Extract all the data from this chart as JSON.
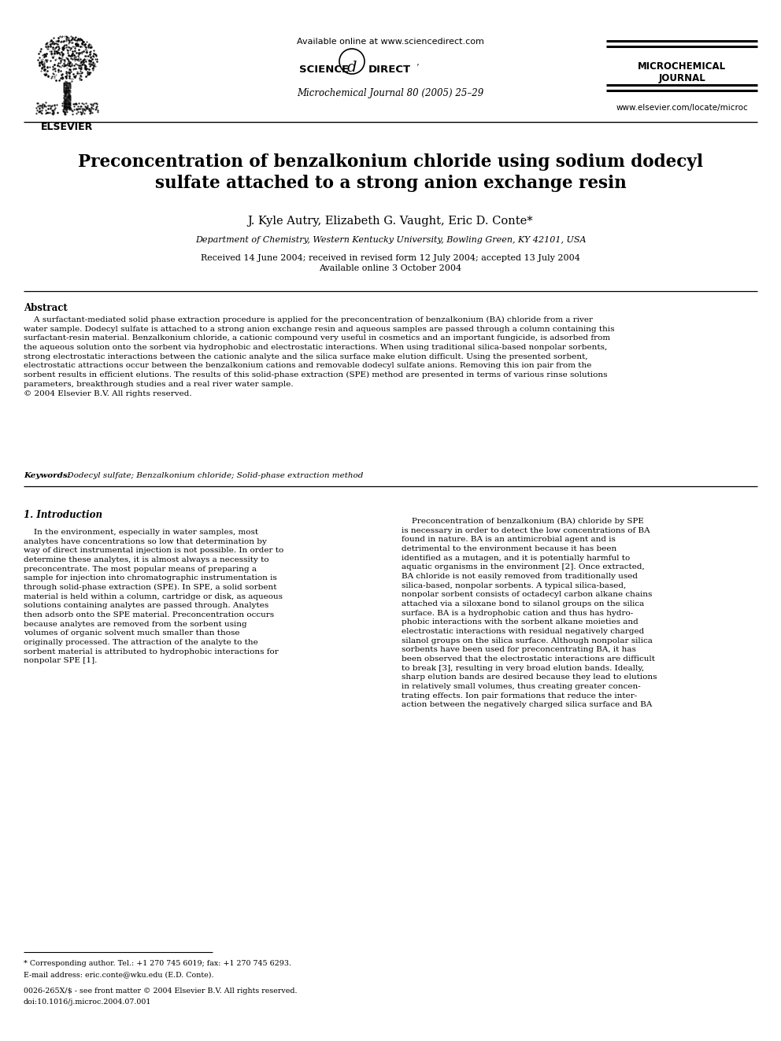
{
  "bg_color": "#ffffff",
  "figsize": [
    9.92,
    13.23
  ],
  "dpi": 100,
  "header": {
    "available_online": "Available online at www.sciencedirect.com",
    "journal_name_line1": "MICROCHEMICAL",
    "journal_name_line2": "JOURNAL",
    "journal_ref": "Microchemical Journal 80 (2005) 25–29",
    "elsevier_url": "www.elsevier.com/locate/microc",
    "elsevier_text": "ELSEVIER"
  },
  "title": "Preconcentration of benzalkonium chloride using sodium dodecyl\nsulfate attached to a strong anion exchange resin",
  "authors": "J. Kyle Autry, Elizabeth G. Vaught, Eric D. Conte*",
  "affiliation": "Department of Chemistry, Western Kentucky University, Bowling Green, KY 42101, USA",
  "dates": "Received 14 June 2004; received in revised form 12 July 2004; accepted 13 July 2004\nAvailable online 3 October 2004",
  "abstract_label": "Abstract",
  "abstract_text": "    A surfactant-mediated solid phase extraction procedure is applied for the preconcentration of benzalkonium (BA) chloride from a river\nwater sample. Dodecyl sulfate is attached to a strong anion exchange resin and aqueous samples are passed through a column containing this\nsurfactant-resin material. Benzalkonium chloride, a cationic compound very useful in cosmetics and an important fungicide, is adsorbed from\nthe aqueous solution onto the sorbent via hydrophobic and electrostatic interactions. When using traditional silica-based nonpolar sorbents,\nstrong electrostatic interactions between the cationic analyte and the silica surface make elution difficult. Using the presented sorbent,\nelectrostatic attractions occur between the benzalkonium cations and removable dodecyl sulfate anions. Removing this ion pair from the\nsorbent results in efficient elutions. The results of this solid-phase extraction (SPE) method are presented in terms of various rinse solutions\nparameters, breakthrough studies and a real river water sample.\n© 2004 Elsevier B.V. All rights reserved.",
  "keywords_label": "Keywords:",
  "keywords_text": " Dodecyl sulfate; Benzalkonium chloride; Solid-phase extraction method",
  "section1_label": "1. Introduction",
  "section1_left": "    In the environment, especially in water samples, most\nanalytes have concentrations so low that determination by\nway of direct instrumental injection is not possible. In order to\ndetermine these analytes, it is almost always a necessity to\npreconcentrate. The most popular means of preparing a\nsample for injection into chromatographic instrumentation is\nthrough solid-phase extraction (SPE). In SPE, a solid sorbent\nmaterial is held within a column, cartridge or disk, as aqueous\nsolutions containing analytes are passed through. Analytes\nthen adsorb onto the SPE material. Preconcentration occurs\nbecause analytes are removed from the sorbent using\nvolumes of organic solvent much smaller than those\noriginally processed. The attraction of the analyte to the\nsorbent material is attributed to hydrophobic interactions for\nnonpolar SPE [1].",
  "section1_right": "    Preconcentration of benzalkonium (BA) chloride by SPE\nis necessary in order to detect the low concentrations of BA\nfound in nature. BA is an antimicrobial agent and is\ndetrimental to the environment because it has been\nidentified as a mutagen, and it is potentially harmful to\naquatic organisms in the environment [2]. Once extracted,\nBA chloride is not easily removed from traditionally used\nsilica-based, nonpolar sorbents. A typical silica-based,\nnonpolar sorbent consists of octadecyl carbon alkane chains\nattached via a siloxane bond to silanol groups on the silica\nsurface. BA is a hydrophobic cation and thus has hydro-\nphobic interactions with the sorbent alkane moieties and\nelectrostatic interactions with residual negatively charged\nsilanol groups on the silica surface. Although nonpolar silica\nsorbents have been used for preconcentrating BA, it has\nbeen observed that the electrostatic interactions are difficult\nto break [3], resulting in very broad elution bands. Ideally,\nsharp elution bands are desired because they lead to elutions\nin relatively small volumes, thus creating greater concen-\ntrating effects. Ion pair formations that reduce the inter-\naction between the negatively charged silica surface and BA",
  "footnote_star": "* Corresponding author. Tel.: +1 270 745 6019; fax: +1 270 745 6293.",
  "footnote_email": "E-mail address: eric.conte@wku.edu (E.D. Conte).",
  "footnote_issn": "0026-265X/$ - see front matter © 2004 Elsevier B.V. All rights reserved.",
  "footnote_doi": "doi:10.1016/j.microc.2004.07.001"
}
